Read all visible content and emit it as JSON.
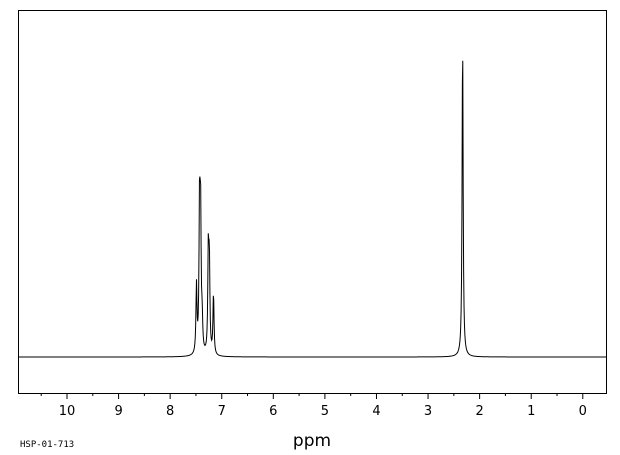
{
  "chart_data": {
    "type": "line",
    "xlabel": "ppm",
    "ylabel": "",
    "x_reversed": true,
    "xlim": [
      10.95,
      -0.45
    ],
    "ylim": [
      -0.06,
      1.0
    ],
    "x_ticks": [
      10,
      9,
      8,
      7,
      6,
      5,
      4,
      3,
      2,
      1,
      0
    ],
    "x_tick_labels": [
      "10",
      "9",
      "8",
      "7",
      "6",
      "5",
      "4",
      "3",
      "2",
      "1",
      "0"
    ],
    "grid": false,
    "legend": "none",
    "sample_code": "HSP-01-713",
    "line_color": "#000000",
    "peaks": [
      {
        "ppm": 7.49,
        "height": 0.21
      },
      {
        "ppm": 7.43,
        "height": 0.45
      },
      {
        "ppm": 7.41,
        "height": 0.42
      },
      {
        "ppm": 7.38,
        "height": 0.09
      },
      {
        "ppm": 7.26,
        "height": 0.31
      },
      {
        "ppm": 7.24,
        "height": 0.27
      },
      {
        "ppm": 7.16,
        "height": 0.19
      },
      {
        "ppm": 2.33,
        "height": 0.98
      }
    ]
  }
}
